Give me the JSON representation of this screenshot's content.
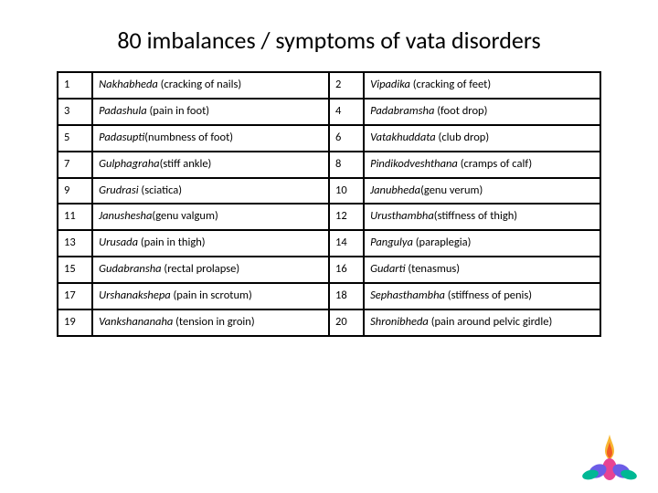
{
  "title": "80 imbalances / symptoms of vata disorders",
  "table": {
    "border_color": "#000000",
    "num_col_width": 38,
    "desc_col_width": 258,
    "font_size": 12.5,
    "rows": [
      {
        "n1": "1",
        "t1": "Nakhabheda",
        "d1": " (cracking of nails)",
        "n2": "2",
        "t2": "Vipadika",
        "d2": " (cracking of feet)"
      },
      {
        "n1": "3",
        "t1": "Padashula",
        "d1": " (pain in foot)",
        "n2": "4",
        "t2": "Padabramsha",
        "d2": " (foot drop)"
      },
      {
        "n1": "5",
        "t1": "Padasupti",
        "d1": "(numbness of foot)",
        "n2": "6",
        "t2": "Vatakhuddata",
        "d2": " (club drop)"
      },
      {
        "n1": "7",
        "t1": "Gulphagraha",
        "d1": "(stiff ankle)",
        "n2": "8",
        "t2": "Pindikodveshthana",
        "d2": " (cramps of calf)"
      },
      {
        "n1": "9",
        "t1": "Grudrasi",
        "d1": " (sciatica)",
        "n2": "10",
        "t2": "Janubheda",
        "d2": "(genu verum)"
      },
      {
        "n1": "11",
        "t1": "Janushesha",
        "d1": "(genu valgum)",
        "n2": "12",
        "t2": "Urusthambha",
        "d2": "(stiffness of thigh)"
      },
      {
        "n1": "13",
        "t1": "Urusada",
        "d1": " (pain in thigh)",
        "n2": "14",
        "t2": "Pangulya",
        "d2": " (paraplegia)"
      },
      {
        "n1": "15",
        "t1": "Gudabransha",
        "d1": " (rectal prolapse)",
        "n2": "16",
        "t2": "Gudarti",
        "d2": " (tenasmus)"
      },
      {
        "n1": "17",
        "t1": "Urshanakshepa",
        "d1": " (pain in scrotum)",
        "n2": "18",
        "t2": "Sephasthambha",
        "d2": " (stiffness of penis)"
      },
      {
        "n1": "19",
        "t1": "Vankshananaha",
        "d1": " (tension in groin)",
        "n2": "20",
        "t2": "Shronibheda",
        "d2": " (pain around pelvic girdle)"
      }
    ]
  },
  "logo": {
    "flame_top": "#f7b733",
    "flame_mid": "#f15a24",
    "petal_pink": "#e84393",
    "petal_purple": "#6c5ce7",
    "petal_teal": "#00b894"
  }
}
